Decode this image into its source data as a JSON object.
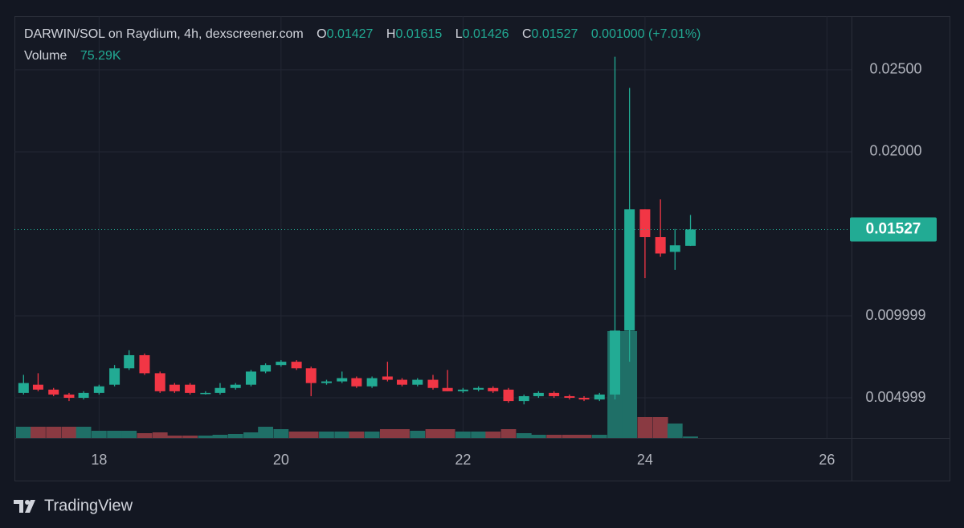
{
  "chart_data": {
    "type": "candlestick",
    "title": "DARWIN/SOL on Raydium, 4h, dexscreener.com",
    "ohlc_labels": [
      "O",
      "H",
      "L",
      "C"
    ],
    "change": "0.001000 (+7.01%)",
    "volume_label": "Volume",
    "volume_value": "75.29K",
    "x": [
      17.17,
      17.33,
      17.5,
      17.67,
      17.83,
      18,
      18.17,
      18.33,
      18.5,
      18.67,
      18.83,
      19,
      19.17,
      19.33,
      19.5,
      19.67,
      19.83,
      20,
      20.17,
      20.33,
      20.5,
      20.67,
      20.83,
      21,
      21.17,
      21.33,
      21.5,
      21.67,
      21.83,
      22,
      22.17,
      22.33,
      22.5,
      22.67,
      22.83,
      23,
      23.17,
      23.33,
      23.5,
      23.67,
      23.83,
      24,
      24.17,
      24.33,
      24.5
    ],
    "open": [
      0.0053,
      0.0058,
      0.0055,
      0.0052,
      0.005,
      0.0053,
      0.0058,
      0.0068,
      0.0076,
      0.0065,
      0.0058,
      0.0058,
      0.0053,
      0.0053,
      0.0056,
      0.0058,
      0.0066,
      0.007,
      0.0072,
      0.0068,
      0.0059,
      0.006,
      0.0062,
      0.0057,
      0.0063,
      0.0061,
      0.0058,
      0.0061,
      0.0056,
      0.0054,
      0.0055,
      0.0056,
      0.0055,
      0.0048,
      0.0051,
      0.0053,
      0.0051,
      0.005,
      0.0049,
      0.0052,
      0.0091,
      0.0165,
      0.0148,
      0.0139,
      0.01427
    ],
    "high": [
      0.0064,
      0.0065,
      0.0056,
      0.0053,
      0.0054,
      0.0058,
      0.007,
      0.0079,
      0.0077,
      0.0066,
      0.0059,
      0.0059,
      0.0054,
      0.0059,
      0.0059,
      0.0067,
      0.0071,
      0.0073,
      0.0073,
      0.0069,
      0.0061,
      0.0066,
      0.0063,
      0.0063,
      0.0072,
      0.0062,
      0.0062,
      0.0064,
      0.0067,
      0.0056,
      0.0057,
      0.0057,
      0.0056,
      0.0052,
      0.0054,
      0.0054,
      0.0052,
      0.0051,
      0.0053,
      0.0258,
      0.0239,
      0.0165,
      0.0171,
      0.0153,
      0.01615
    ],
    "low": [
      0.0052,
      0.0054,
      0.0051,
      0.0048,
      0.0049,
      0.0052,
      0.0057,
      0.0067,
      0.0064,
      0.0053,
      0.0053,
      0.0052,
      0.0052,
      0.0052,
      0.0055,
      0.0057,
      0.0065,
      0.0069,
      0.0067,
      0.0051,
      0.0058,
      0.0059,
      0.0056,
      0.0056,
      0.006,
      0.0057,
      0.0057,
      0.0055,
      0.0054,
      0.0053,
      0.0054,
      0.0053,
      0.0047,
      0.0046,
      0.005,
      0.005,
      0.0049,
      0.0048,
      0.0048,
      0.0049,
      0.0072,
      0.0123,
      0.0136,
      0.0128,
      0.01426
    ],
    "close": [
      0.0059,
      0.0055,
      0.0052,
      0.005,
      0.0053,
      0.0057,
      0.0068,
      0.0076,
      0.0065,
      0.0054,
      0.0054,
      0.0053,
      0.0053,
      0.0056,
      0.0058,
      0.0066,
      0.007,
      0.0072,
      0.0068,
      0.0059,
      0.006,
      0.0062,
      0.0057,
      0.0062,
      0.0061,
      0.0058,
      0.0061,
      0.0056,
      0.0054,
      0.0055,
      0.0056,
      0.0054,
      0.0048,
      0.0051,
      0.0053,
      0.0051,
      0.005,
      0.0049,
      0.0052,
      0.0091,
      0.0165,
      0.0148,
      0.0138,
      0.0143,
      0.01527
    ],
    "volume": [
      560000,
      560000,
      560000,
      560000,
      560000,
      360000,
      360000,
      360000,
      240000,
      280000,
      120000,
      120000,
      120000,
      160000,
      200000,
      280000,
      560000,
      440000,
      320000,
      320000,
      320000,
      320000,
      320000,
      320000,
      440000,
      440000,
      360000,
      440000,
      440000,
      320000,
      320000,
      320000,
      440000,
      240000,
      160000,
      160000,
      160000,
      160000,
      160000,
      5320000,
      5320000,
      1040000,
      1040000,
      720000,
      75290
    ],
    "colors": {
      "up": "#22ab94",
      "down": "#f23645",
      "up_volume": "#1f6f67",
      "down_volume": "#8a3a42"
    },
    "xlim": [
      17.07,
      26.27
    ],
    "xticks": [
      18,
      20,
      22,
      24,
      26
    ],
    "ylim": [
      0.00255,
      0.02828
    ],
    "yticks": [
      {
        "value": 0.004999,
        "label": "0.004999"
      },
      {
        "value": 0.009999,
        "label": "0.009999"
      },
      {
        "value": 0.02,
        "label": "0.02000"
      },
      {
        "value": 0.025,
        "label": "0.02500"
      }
    ],
    "volume_lim": [
      0,
      21000000
    ],
    "grid": true
  },
  "footer": {
    "brand": "TradingView"
  }
}
